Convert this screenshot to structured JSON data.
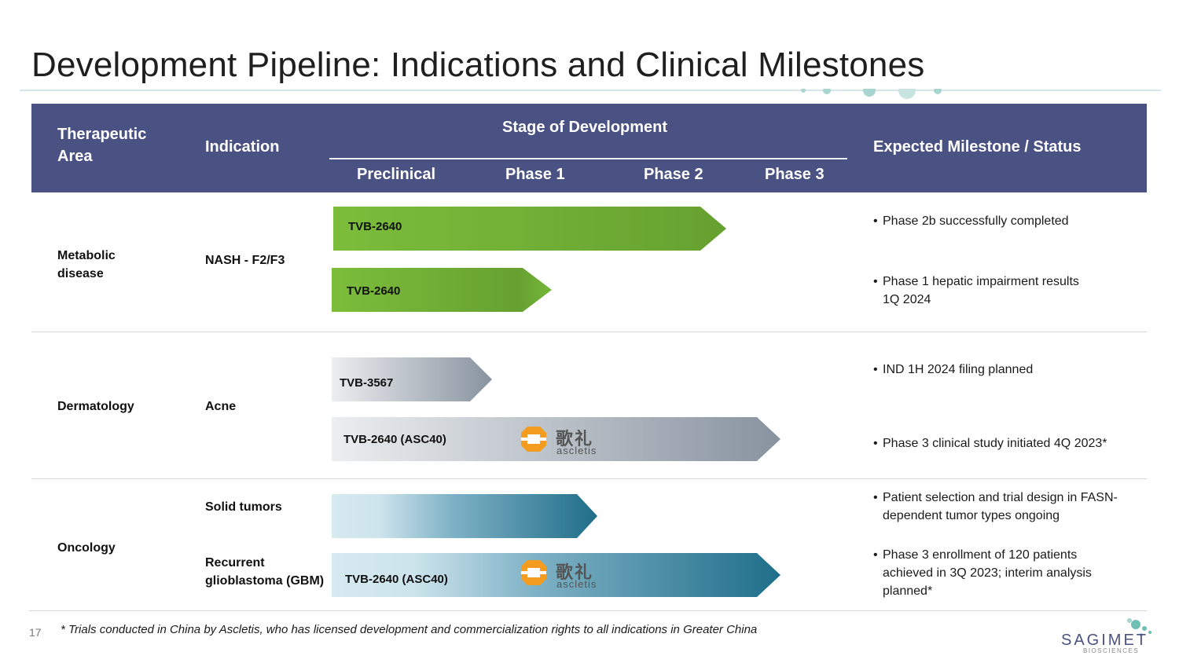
{
  "title": "Development Pipeline: Indications and Clinical Milestones",
  "header": {
    "therapeutic_area_l1": "Therapeutic",
    "therapeutic_area_l2": "Area",
    "indication": "Indication",
    "stage": "Stage of Development",
    "preclinical": "Preclinical",
    "phase1": "Phase 1",
    "phase2": "Phase 2",
    "phase3": "Phase 3",
    "milestone": "Expected Milestone / Status",
    "background_color": "#4a5284"
  },
  "rows": {
    "metabolic": {
      "area_l1": "Metabolic",
      "area_l2": "disease",
      "indication": "NASH - F2/F3",
      "bar1_label": "TVB-2640",
      "bar2_label": "TVB-2640",
      "status1": "Phase 2b successfully completed",
      "status2_l1": "Phase 1 hepatic impairment results",
      "status2_l2": "1Q 2024"
    },
    "dermatology": {
      "area": "Dermatology",
      "indication": "Acne",
      "bar1_label": "TVB-3567",
      "bar2_label": "TVB-2640 (ASC40)",
      "status1": "IND 1H 2024 filing planned",
      "status2": "Phase 3 clinical study initiated 4Q 2023*"
    },
    "oncology": {
      "area": "Oncology",
      "indication1": "Solid tumors",
      "indication2_l1": "Recurrent",
      "indication2_l2": "glioblastoma (GBM)",
      "bar2_label": "TVB-2640 (ASC40)",
      "status1_l1": "Patient selection and trial design in FASN-",
      "status1_l2": "dependent tumor types ongoing",
      "status2_l1": "Phase 3 enrollment  of 120 patients",
      "status2_l2": "achieved in 3Q 2023; interim analysis",
      "status2_l3": "planned*"
    }
  },
  "partner_logo": {
    "chinese": "歌礼",
    "english": "ascletis"
  },
  "footnote": "* Trials conducted in China by Ascletis, who has licensed development and commercialization rights to all indications in Greater China",
  "page_number": "17",
  "company": {
    "name": "SAGIMET",
    "tagline": "BIOSCIENCES"
  },
  "colors": {
    "metabolic_bar": "#6aa631",
    "dermatology_bar": "#8e9aa6",
    "oncology_bar": "#1f6e89",
    "accent_dots": "#a8d5cf"
  }
}
